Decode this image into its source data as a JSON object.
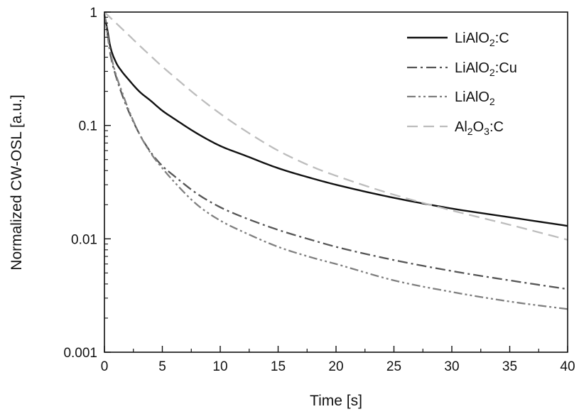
{
  "chart_data": {
    "type": "line",
    "xlabel": "Time [s]",
    "ylabel": "Normalized CW-OSL [a.u.]",
    "xlim": [
      0,
      40
    ],
    "ylim": [
      0.001,
      1
    ],
    "yscale": "log",
    "grid": false,
    "legend_position": "top-right",
    "x_ticks": [
      "0",
      "5",
      "10",
      "15",
      "20",
      "25",
      "30",
      "35",
      "40"
    ],
    "y_ticks": [
      "0.001",
      "0.01",
      "0.1",
      "1"
    ],
    "series": [
      {
        "label_main": "LiAlO",
        "label_sub": "2",
        "label_tail": ":C",
        "color": "#111111",
        "dash": "solid",
        "x": [
          0,
          0.25,
          0.5,
          1,
          1.5,
          2,
          3,
          4,
          5,
          6,
          8,
          10,
          12,
          15,
          18,
          20,
          25,
          30,
          35,
          40
        ],
        "y": [
          0.95,
          0.7,
          0.5,
          0.36,
          0.3,
          0.26,
          0.2,
          0.165,
          0.135,
          0.115,
          0.085,
          0.066,
          0.055,
          0.042,
          0.034,
          0.03,
          0.023,
          0.0185,
          0.0155,
          0.013
        ]
      },
      {
        "label_main": "LiAlO",
        "label_sub": "2",
        "label_tail": ":Cu",
        "color": "#555555",
        "dash": "dashdot",
        "x": [
          0,
          0.25,
          0.5,
          1,
          1.5,
          2,
          3,
          4,
          5,
          6,
          8,
          10,
          12,
          15,
          18,
          20,
          25,
          30,
          35,
          40
        ],
        "y": [
          0.95,
          0.65,
          0.43,
          0.27,
          0.19,
          0.14,
          0.085,
          0.058,
          0.044,
          0.036,
          0.025,
          0.019,
          0.0155,
          0.012,
          0.0097,
          0.0085,
          0.0065,
          0.0052,
          0.0043,
          0.0036
        ]
      },
      {
        "label_main": "LiAlO",
        "label_sub": "2",
        "label_tail": "",
        "color": "#808080",
        "dash": "dashdotdot",
        "x": [
          0,
          0.25,
          0.5,
          1,
          1.5,
          2,
          3,
          4,
          5,
          6,
          8,
          10,
          12,
          15,
          18,
          20,
          25,
          30,
          35,
          40
        ],
        "y": [
          0.95,
          0.65,
          0.45,
          0.28,
          0.2,
          0.145,
          0.085,
          0.057,
          0.042,
          0.032,
          0.02,
          0.0145,
          0.0115,
          0.0085,
          0.0068,
          0.006,
          0.0043,
          0.0034,
          0.0028,
          0.0024
        ]
      },
      {
        "label_main": "Al",
        "label_sub": "2",
        "label_tail": "O",
        "label_sub2": "3",
        "label_tail2": ":C",
        "color": "#bdbdbd",
        "dash": "dash",
        "x": [
          0,
          1,
          2,
          3,
          4,
          5,
          6,
          8,
          10,
          12,
          15,
          18,
          20,
          25,
          30,
          35,
          40
        ],
        "y": [
          1.0,
          0.8,
          0.64,
          0.51,
          0.41,
          0.33,
          0.27,
          0.182,
          0.127,
          0.092,
          0.06,
          0.043,
          0.036,
          0.0245,
          0.0178,
          0.0133,
          0.0098
        ]
      }
    ]
  }
}
